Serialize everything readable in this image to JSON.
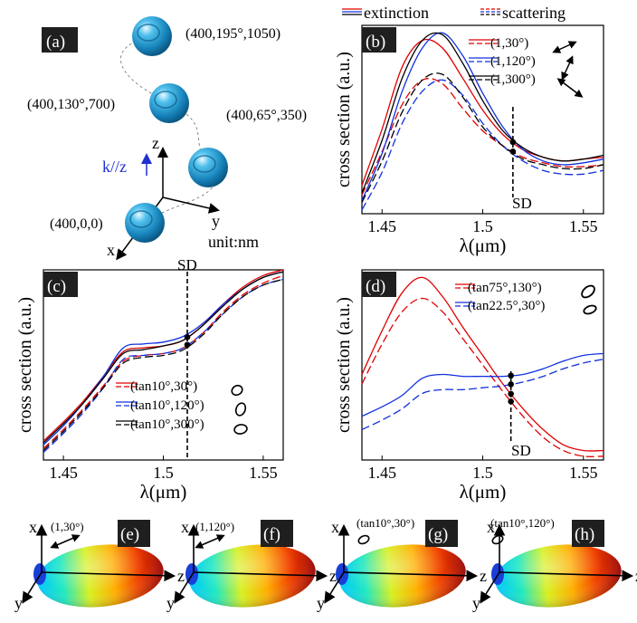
{
  "legend_top": {
    "extinction": "extinction",
    "scattering": "scattering"
  },
  "panel_a": {
    "tag": "(a)",
    "spheres": [
      {
        "label": "(400,195°,1050)"
      },
      {
        "label": "(400,130°,700)"
      },
      {
        "label": "(400,65°,350)"
      },
      {
        "label": "(400,0,0)"
      }
    ],
    "axes": {
      "x": "x",
      "y": "y",
      "z": "z"
    },
    "k_label": "k//z",
    "unit": "unit:nm",
    "colors": {
      "sphere": "#1f8fc4",
      "k_arrow": "#1f2fd0"
    }
  },
  "chart_data": [
    {
      "panel": "(b)",
      "type": "line",
      "xlabel": "λ(μm)",
      "ylabel": "cross section (a.u.)",
      "xlim": [
        1.44,
        1.56
      ],
      "ylim": [
        0,
        1
      ],
      "xticks": [
        1.45,
        1.5,
        1.55
      ],
      "xtick_labels": [
        "1.45",
        "1.5",
        "1.55"
      ],
      "annotation": "SD",
      "sd_x": 1.515,
      "legend": [
        "(1,30°)",
        "(1,120°)",
        "(1,300°)"
      ],
      "series": [
        {
          "name": "(1,30°)",
          "color": "#e00000",
          "dash": false,
          "x": [
            1.44,
            1.45,
            1.46,
            1.47,
            1.48,
            1.49,
            1.5,
            1.51,
            1.52,
            1.53,
            1.54,
            1.55,
            1.56
          ],
          "y": [
            0.15,
            0.45,
            0.78,
            0.92,
            0.88,
            0.72,
            0.55,
            0.42,
            0.34,
            0.3,
            0.28,
            0.29,
            0.3
          ]
        },
        {
          "name": "(1,30°)",
          "color": "#e00000",
          "dash": true,
          "x": [
            1.44,
            1.45,
            1.46,
            1.47,
            1.48,
            1.49,
            1.5,
            1.51,
            1.52,
            1.53,
            1.54,
            1.55,
            1.56
          ],
          "y": [
            0.1,
            0.33,
            0.58,
            0.71,
            0.69,
            0.56,
            0.44,
            0.36,
            0.3,
            0.27,
            0.25,
            0.25,
            0.26
          ]
        },
        {
          "name": "(1,120°)",
          "color": "#1030e0",
          "dash": false,
          "x": [
            1.44,
            1.45,
            1.46,
            1.47,
            1.48,
            1.49,
            1.5,
            1.51,
            1.52,
            1.53,
            1.54,
            1.55,
            1.56
          ],
          "y": [
            0.07,
            0.32,
            0.65,
            0.88,
            0.96,
            0.84,
            0.64,
            0.46,
            0.34,
            0.28,
            0.26,
            0.27,
            0.29
          ]
        },
        {
          "name": "(1,120°)",
          "color": "#1030e0",
          "dash": true,
          "x": [
            1.44,
            1.45,
            1.46,
            1.47,
            1.48,
            1.49,
            1.5,
            1.51,
            1.52,
            1.53,
            1.54,
            1.55,
            1.56
          ],
          "y": [
            0.02,
            0.22,
            0.48,
            0.65,
            0.71,
            0.63,
            0.48,
            0.36,
            0.28,
            0.23,
            0.21,
            0.21,
            0.23
          ]
        },
        {
          "name": "(1,300°)",
          "color": "#000000",
          "dash": false,
          "x": [
            1.44,
            1.45,
            1.46,
            1.47,
            1.48,
            1.49,
            1.5,
            1.51,
            1.52,
            1.53,
            1.54,
            1.55,
            1.56
          ],
          "y": [
            0.11,
            0.39,
            0.72,
            0.92,
            0.95,
            0.8,
            0.6,
            0.44,
            0.35,
            0.3,
            0.28,
            0.29,
            0.31
          ]
        },
        {
          "name": "(1,300°)",
          "color": "#000000",
          "dash": true,
          "x": [
            1.44,
            1.45,
            1.46,
            1.47,
            1.48,
            1.49,
            1.5,
            1.51,
            1.52,
            1.53,
            1.54,
            1.55,
            1.56
          ],
          "y": [
            0.06,
            0.28,
            0.54,
            0.71,
            0.74,
            0.62,
            0.46,
            0.36,
            0.29,
            0.26,
            0.24,
            0.24,
            0.26
          ]
        }
      ]
    },
    {
      "panel": "(c)",
      "type": "line",
      "xlabel": "λ(μm)",
      "ylabel": "cross section (a.u.)",
      "xlim": [
        1.44,
        1.56
      ],
      "ylim": [
        0,
        1
      ],
      "xticks": [
        1.45,
        1.5,
        1.55
      ],
      "xtick_labels": [
        "1.45",
        "1.5",
        "1.55"
      ],
      "annotation": "SD",
      "sd_x": 1.512,
      "legend": [
        "(tan10°,30°)",
        "(tan10°,120°)",
        "(tan10°,300°)"
      ],
      "series": [
        {
          "name": "(tan10°,30°)",
          "color": "#e00000",
          "dash": false,
          "x": [
            1.44,
            1.45,
            1.46,
            1.47,
            1.48,
            1.49,
            1.5,
            1.51,
            1.52,
            1.53,
            1.54,
            1.55,
            1.56
          ],
          "y": [
            0.1,
            0.2,
            0.31,
            0.44,
            0.57,
            0.59,
            0.6,
            0.63,
            0.71,
            0.82,
            0.91,
            0.97,
            1.0
          ]
        },
        {
          "name": "(tan10°,30°)",
          "color": "#e00000",
          "dash": true,
          "x": [
            1.44,
            1.45,
            1.46,
            1.47,
            1.48,
            1.49,
            1.5,
            1.51,
            1.52,
            1.53,
            1.54,
            1.55,
            1.56
          ],
          "y": [
            0.06,
            0.16,
            0.27,
            0.39,
            0.52,
            0.55,
            0.56,
            0.59,
            0.67,
            0.78,
            0.87,
            0.93,
            0.97
          ]
        },
        {
          "name": "(tan10°,120°)",
          "color": "#1030e0",
          "dash": false,
          "x": [
            1.44,
            1.45,
            1.46,
            1.47,
            1.48,
            1.49,
            1.5,
            1.51,
            1.52,
            1.53,
            1.54,
            1.55,
            1.56
          ],
          "y": [
            0.08,
            0.18,
            0.3,
            0.44,
            0.59,
            0.61,
            0.62,
            0.65,
            0.72,
            0.82,
            0.9,
            0.96,
            0.99
          ]
        },
        {
          "name": "(tan10°,120°)",
          "color": "#1030e0",
          "dash": true,
          "x": [
            1.44,
            1.45,
            1.46,
            1.47,
            1.48,
            1.49,
            1.5,
            1.51,
            1.52,
            1.53,
            1.54,
            1.55,
            1.56
          ],
          "y": [
            0.04,
            0.14,
            0.25,
            0.38,
            0.53,
            0.55,
            0.56,
            0.59,
            0.67,
            0.77,
            0.86,
            0.92,
            0.95
          ]
        },
        {
          "name": "(tan10°,300°)",
          "color": "#000000",
          "dash": false,
          "x": [
            1.44,
            1.45,
            1.46,
            1.47,
            1.48,
            1.49,
            1.5,
            1.51,
            1.52,
            1.53,
            1.54,
            1.55,
            1.56
          ],
          "y": [
            0.09,
            0.19,
            0.3,
            0.43,
            0.56,
            0.58,
            0.6,
            0.63,
            0.71,
            0.81,
            0.9,
            0.96,
            0.99
          ]
        },
        {
          "name": "(tan10°,300°)",
          "color": "#000000",
          "dash": true,
          "x": [
            1.44,
            1.45,
            1.46,
            1.47,
            1.48,
            1.49,
            1.5,
            1.51,
            1.52,
            1.53,
            1.54,
            1.55,
            1.56
          ],
          "y": [
            0.05,
            0.15,
            0.26,
            0.38,
            0.51,
            0.54,
            0.55,
            0.58,
            0.66,
            0.77,
            0.86,
            0.92,
            0.95
          ]
        }
      ]
    },
    {
      "panel": "(d)",
      "type": "line",
      "xlabel": "λ(μm)",
      "ylabel": "cross section (a.u.)",
      "xlim": [
        1.44,
        1.56
      ],
      "ylim": [
        0,
        1
      ],
      "xticks": [
        1.45,
        1.5,
        1.55
      ],
      "xtick_labels": [
        "1.45",
        "1.5",
        "1.55"
      ],
      "annotation": "SD",
      "sd_x": 1.514,
      "legend": [
        "(tan75°,130°)",
        "(tan22.5°,30°)"
      ],
      "series": [
        {
          "name": "(tan75°,130°)",
          "color": "#e00000",
          "dash": false,
          "x": [
            1.44,
            1.45,
            1.46,
            1.47,
            1.48,
            1.49,
            1.5,
            1.51,
            1.52,
            1.53,
            1.54,
            1.55,
            1.56
          ],
          "y": [
            0.45,
            0.68,
            0.88,
            0.96,
            0.86,
            0.7,
            0.55,
            0.4,
            0.27,
            0.16,
            0.08,
            0.05,
            0.05
          ]
        },
        {
          "name": "(tan75°,130°)",
          "color": "#e00000",
          "dash": true,
          "x": [
            1.44,
            1.45,
            1.46,
            1.47,
            1.48,
            1.49,
            1.5,
            1.51,
            1.52,
            1.53,
            1.54,
            1.55,
            1.56
          ],
          "y": [
            0.4,
            0.61,
            0.78,
            0.85,
            0.78,
            0.64,
            0.5,
            0.36,
            0.23,
            0.12,
            0.05,
            0.02,
            0.02
          ]
        },
        {
          "name": "(tan22.5°,30°)",
          "color": "#1030e0",
          "dash": false,
          "x": [
            1.44,
            1.45,
            1.46,
            1.47,
            1.48,
            1.49,
            1.5,
            1.51,
            1.52,
            1.53,
            1.54,
            1.55,
            1.56
          ],
          "y": [
            0.23,
            0.28,
            0.34,
            0.43,
            0.45,
            0.44,
            0.44,
            0.44,
            0.45,
            0.48,
            0.52,
            0.55,
            0.56
          ]
        },
        {
          "name": "(tan22.5°,30°)",
          "color": "#1030e0",
          "dash": true,
          "x": [
            1.44,
            1.45,
            1.46,
            1.47,
            1.48,
            1.49,
            1.5,
            1.51,
            1.52,
            1.53,
            1.54,
            1.55,
            1.56
          ],
          "y": [
            0.16,
            0.21,
            0.27,
            0.35,
            0.37,
            0.37,
            0.38,
            0.39,
            0.41,
            0.44,
            0.48,
            0.51,
            0.53
          ]
        }
      ]
    }
  ],
  "pattern_panels": [
    {
      "tag": "(e)",
      "label": "(1,30°)",
      "axes": {
        "x": "x",
        "y": "y",
        "z": "z"
      },
      "pol": "linear"
    },
    {
      "tag": "(f)",
      "label": "(1,120°)",
      "axes": {
        "x": "x",
        "y": "y",
        "z": "z"
      },
      "pol": "linear"
    },
    {
      "tag": "(g)",
      "label": "(tan10°,30°)",
      "axes": {
        "x": "x",
        "y": "y",
        "z": "z"
      },
      "pol": "elliptical"
    },
    {
      "tag": "(h)",
      "label": "(tan10°,120°)",
      "axes": {
        "x": "x",
        "y": "y",
        "z": "z"
      },
      "pol": "elliptical"
    }
  ]
}
